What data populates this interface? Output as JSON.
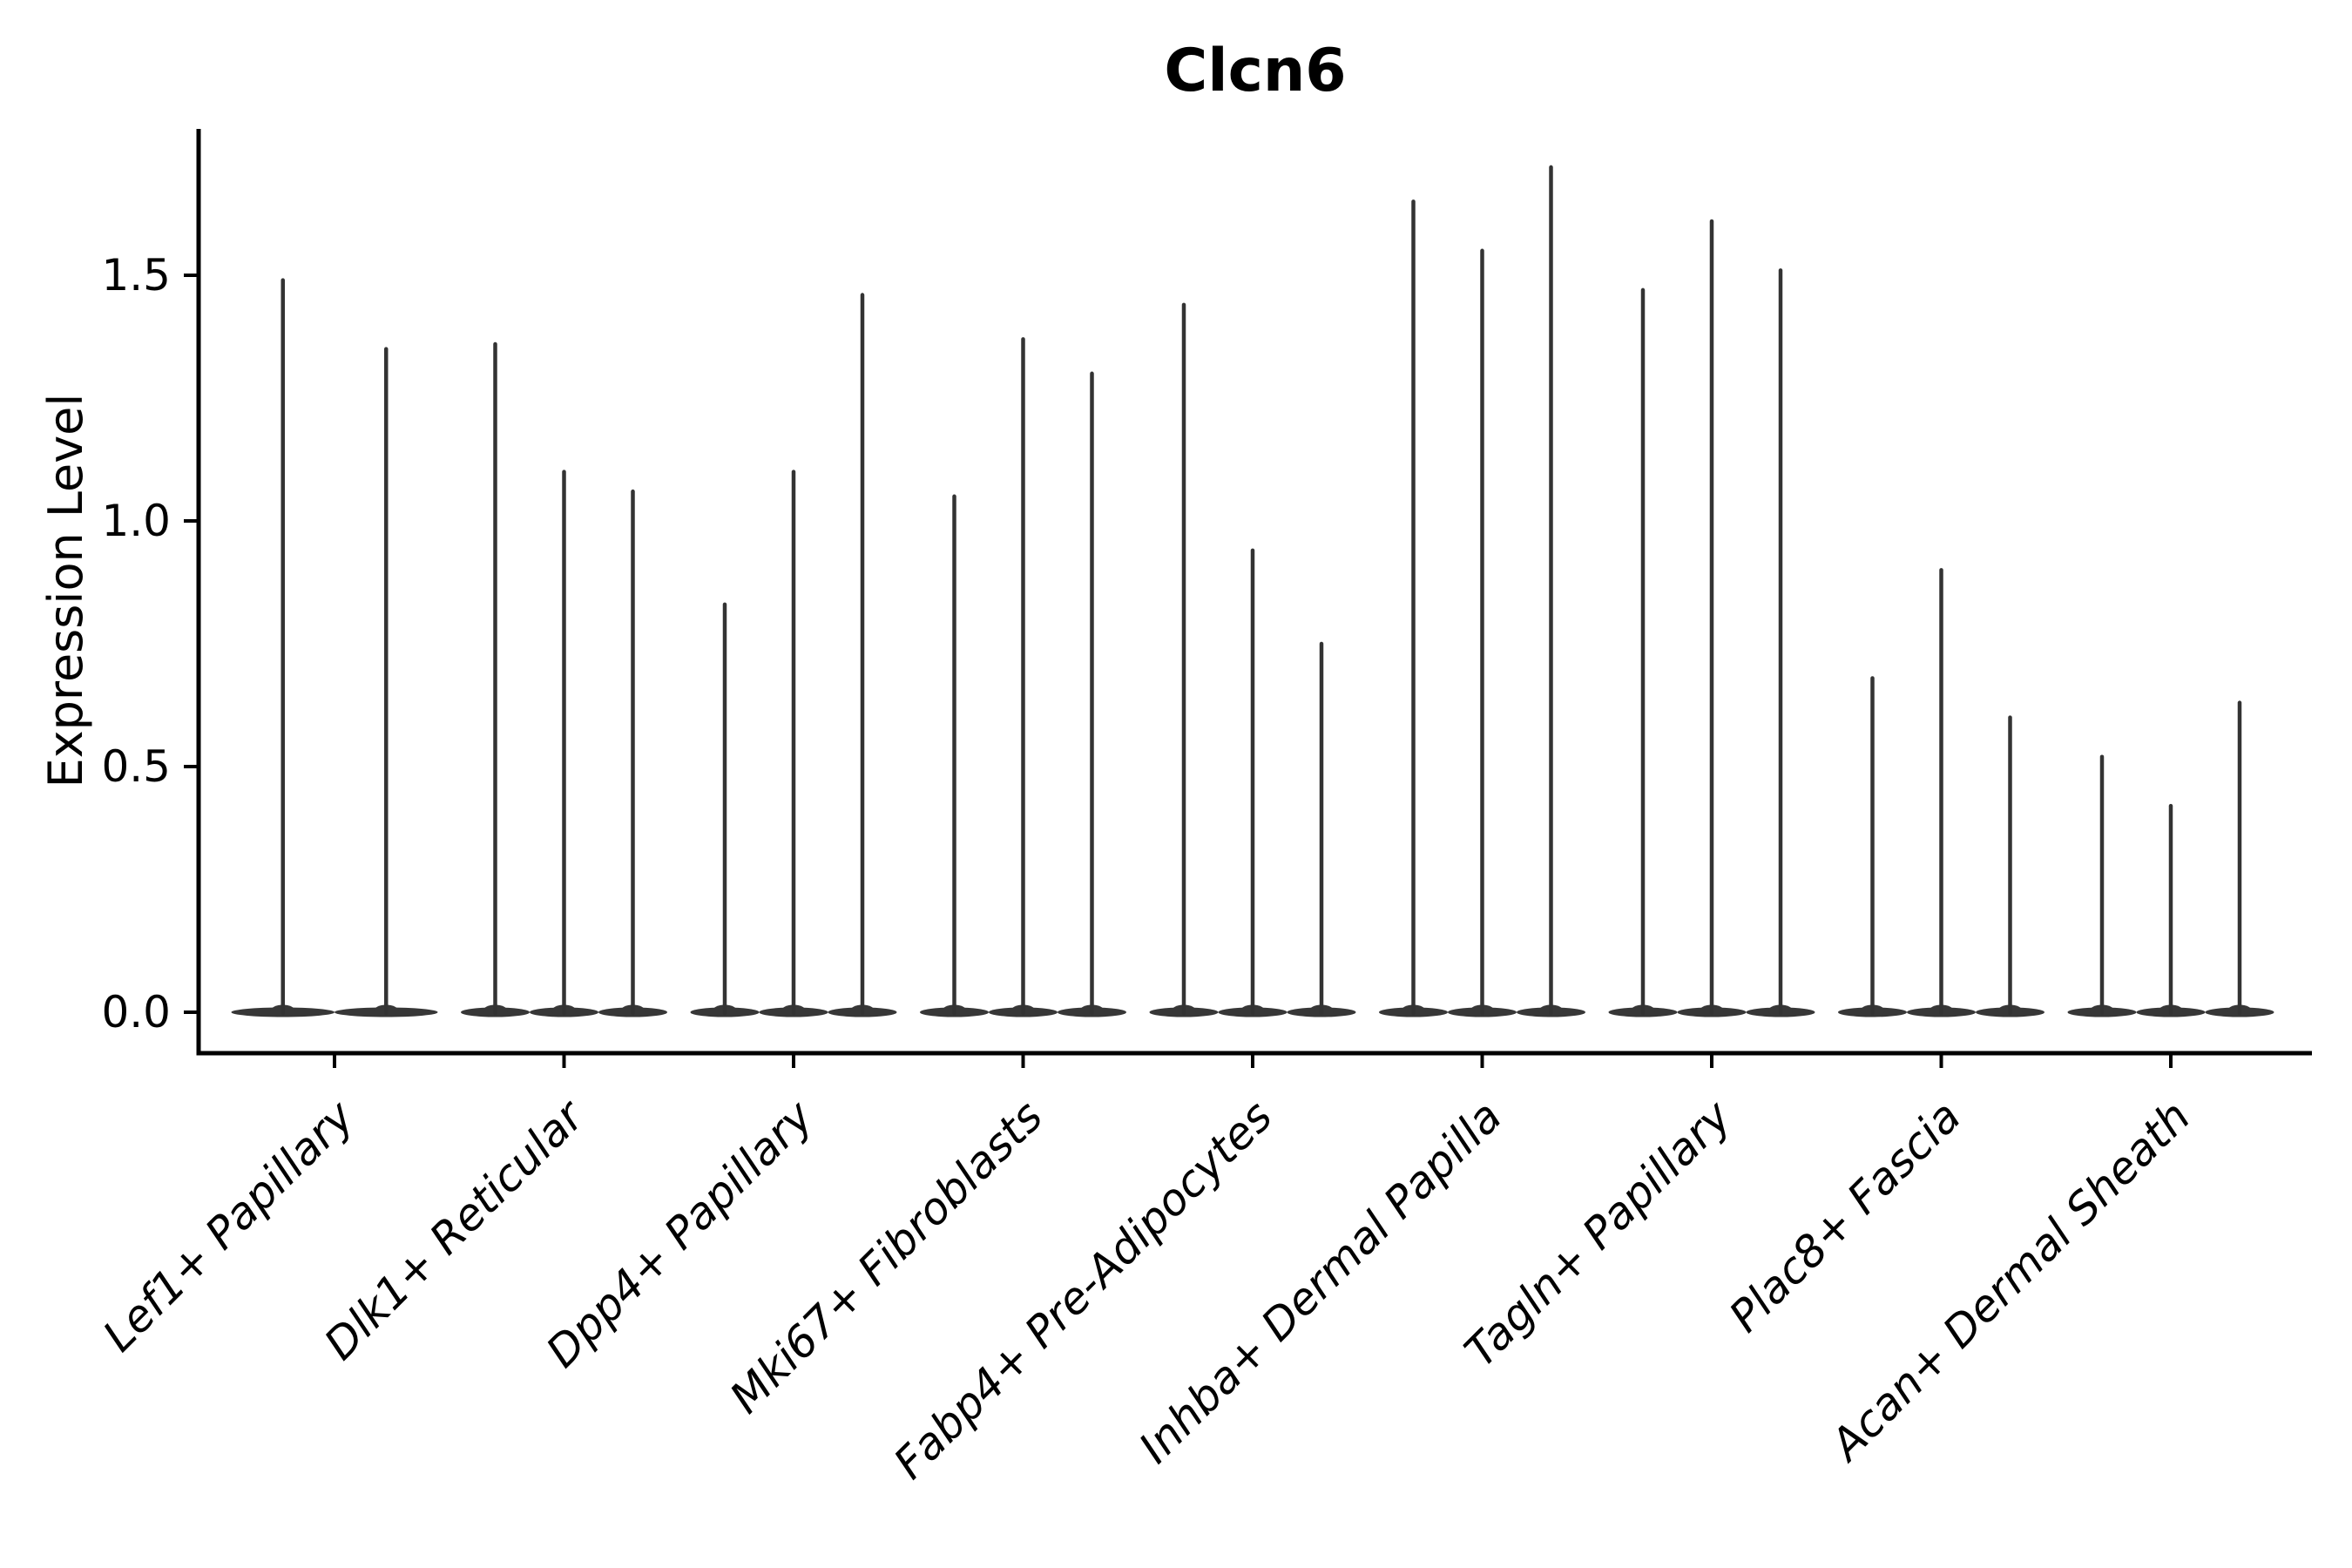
{
  "chart_data": {
    "type": "violin",
    "title": "Clcn6",
    "ylabel": "Expression Level",
    "xlabel": "",
    "yticks": [
      0.0,
      0.5,
      1.0,
      1.5
    ],
    "ytick_labels": [
      "0.0",
      "0.5",
      "1.0",
      "1.5"
    ],
    "ylim": [
      -0.08,
      1.8
    ],
    "grid": false,
    "legend": "none",
    "x_label_rotation_deg": 45,
    "x_label_style": "italic",
    "description": "Stacked violin plot of Clcn6 expression; each cell-type group contains thin needle-like violins (one per sample) whose maxima are listed in violin_maxima; bulk of density sits at 0.",
    "categories": [
      {
        "label": "Lef1+ Papillary",
        "violin_maxima": [
          1.49,
          1.35
        ]
      },
      {
        "label": "Dlk1+ Reticular",
        "violin_maxima": [
          1.36,
          1.1,
          1.06
        ]
      },
      {
        "label": "Dpp4+ Papillary",
        "violin_maxima": [
          0.83,
          1.1,
          1.46
        ]
      },
      {
        "label": "Mki67+ Fibroblasts",
        "violin_maxima": [
          1.05,
          1.37,
          1.3
        ]
      },
      {
        "label": "Fabp4+ Pre-Adipocytes",
        "violin_maxima": [
          1.44,
          0.94,
          0.75
        ]
      },
      {
        "label": "Inhba+ Dermal Papilla",
        "violin_maxima": [
          1.65,
          1.55,
          1.72
        ]
      },
      {
        "label": "Tagln+ Papillary",
        "violin_maxima": [
          1.47,
          1.61,
          1.51
        ]
      },
      {
        "label": "Plac8+ Fascia",
        "violin_maxima": [
          0.68,
          0.9,
          0.6
        ]
      },
      {
        "label": "Acan+ Dermal Sheath",
        "violin_maxima": [
          0.52,
          0.42,
          0.63
        ]
      }
    ]
  },
  "colors": {
    "background": "#ffffff",
    "violin": "#333333",
    "violin_base": "#373737",
    "axis": "#000000",
    "text": "#000000"
  }
}
